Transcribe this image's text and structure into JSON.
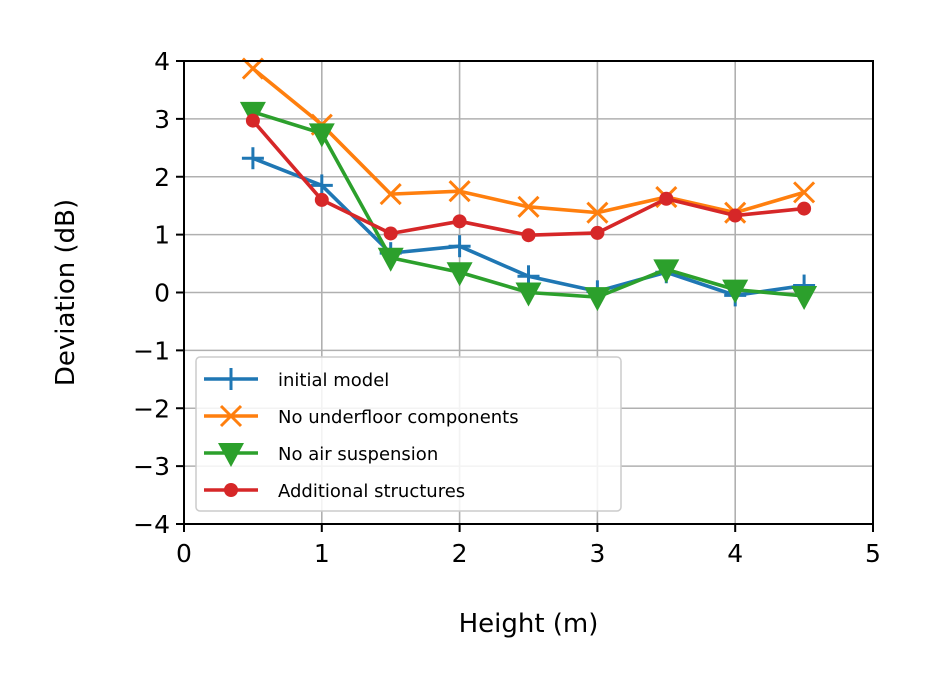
{
  "chart_data": {
    "type": "line",
    "xlabel": "Height (m)",
    "ylabel": "Deviation (dB)",
    "xlim": [
      0,
      5
    ],
    "ylim": [
      -4,
      4
    ],
    "xticks": [
      "0",
      "1",
      "2",
      "3",
      "4",
      "5"
    ],
    "yticks": [
      "4",
      "3",
      "2",
      "1",
      "0",
      "−1",
      "−2",
      "−3",
      "−4"
    ],
    "grid": true,
    "legend_position": "lower-left",
    "x": [
      0.5,
      1.0,
      1.5,
      2.0,
      2.5,
      3.0,
      3.5,
      4.0,
      4.5
    ],
    "series": [
      {
        "name": "initial model",
        "color": "#1f77b4",
        "marker": "plus",
        "values": [
          2.32,
          1.85,
          0.68,
          0.8,
          0.28,
          0.02,
          0.35,
          -0.05,
          0.12
        ]
      },
      {
        "name": "No underfloor components",
        "color": "#ff7f0e",
        "marker": "x",
        "values": [
          3.87,
          2.9,
          1.7,
          1.75,
          1.48,
          1.38,
          1.65,
          1.38,
          1.73
        ]
      },
      {
        "name": "No air suspension",
        "color": "#2ca02c",
        "marker": "triangle-down",
        "values": [
          3.12,
          2.75,
          0.6,
          0.35,
          0.0,
          -0.08,
          0.4,
          0.05,
          -0.06
        ]
      },
      {
        "name": "Additional structures",
        "color": "#d62728",
        "marker": "circle",
        "values": [
          2.97,
          1.6,
          1.02,
          1.23,
          0.99,
          1.03,
          1.62,
          1.33,
          1.45
        ]
      }
    ]
  }
}
